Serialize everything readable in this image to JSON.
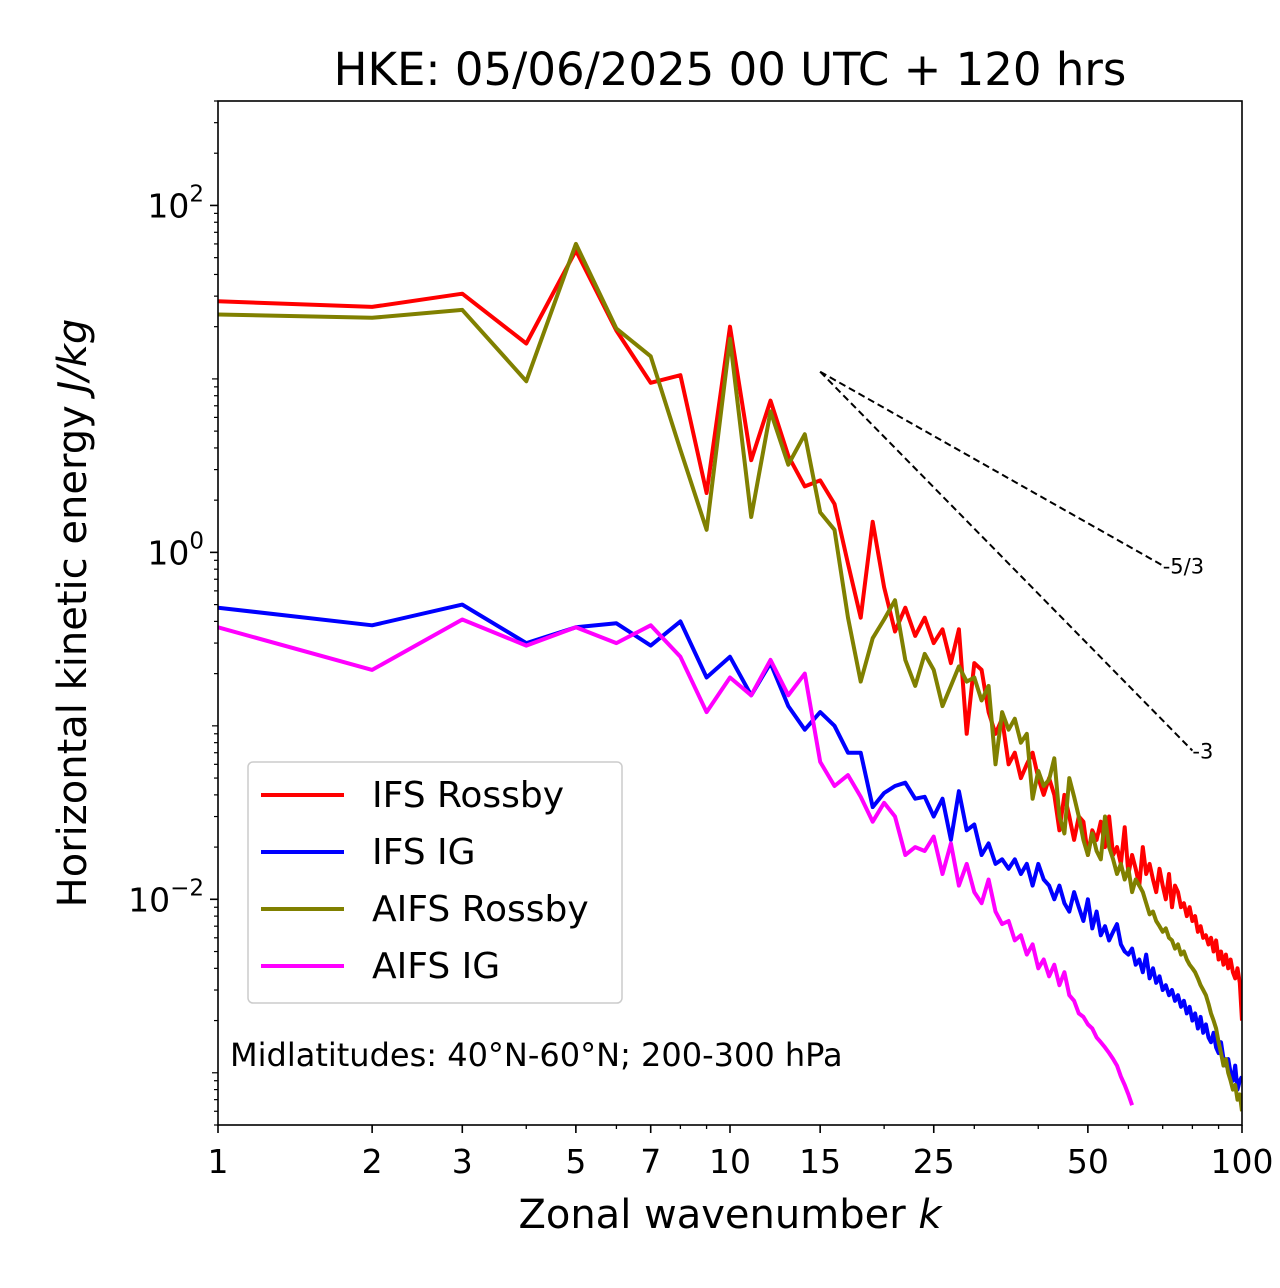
{
  "chart_data": {
    "type": "line",
    "title": "HKE: 05/06/2025 00 UTC + 120 hrs",
    "xlabel": "Zonal wavenumber",
    "xlabel_symbol": "k",
    "ylabel": "Horizontal kinetic energy",
    "ylabel_unit": "J/kg",
    "xscale": "log",
    "yscale": "log",
    "xlim": [
      1,
      100
    ],
    "ylim": [
      0.0005,
      400
    ],
    "xticks": [
      1,
      2,
      3,
      5,
      7,
      10,
      15,
      25,
      50,
      100
    ],
    "xtick_labels": [
      "1",
      "2",
      "3",
      "5",
      "7",
      "10",
      "15",
      "25",
      "50",
      "100"
    ],
    "yticks": [
      {
        "value": 100,
        "base": "10",
        "exp": "2"
      },
      {
        "value": 1,
        "base": "10",
        "exp": "0"
      },
      {
        "value": 0.01,
        "base": "10",
        "exp": "−2"
      }
    ],
    "annotation": "Midlatitudes: 40°N-60°N; 200-300 hPa",
    "legend_position": "lower-left",
    "reference_lines": [
      {
        "label": "-5/3",
        "slope": -1.6667,
        "x": [
          15,
          70
        ],
        "y": [
          11.0,
          0.84
        ]
      },
      {
        "label": "-3",
        "slope": -3,
        "x": [
          15,
          80
        ],
        "y": [
          11.0,
          0.072
        ]
      }
    ],
    "series": [
      {
        "name": "IFS Rossby",
        "color": "#ff0000",
        "x": [
          1,
          2,
          3,
          4,
          5,
          6,
          7,
          8,
          9,
          10,
          11,
          12,
          13,
          14,
          15,
          16,
          17,
          18,
          19,
          20,
          21,
          22,
          23,
          24,
          25,
          26,
          27,
          28,
          29,
          30,
          31,
          32,
          33,
          34,
          35,
          36,
          37,
          38,
          39,
          40,
          41,
          42,
          43,
          44,
          45,
          46,
          47,
          48,
          49,
          50,
          51,
          52,
          53,
          54,
          55,
          56,
          57,
          58,
          59,
          60,
          61,
          62,
          63,
          64,
          65,
          66,
          67,
          68,
          69,
          70,
          71,
          72,
          73,
          74,
          75,
          76,
          77,
          78,
          79,
          80,
          81,
          82,
          83,
          84,
          85,
          86,
          87,
          88,
          89,
          90,
          91,
          92,
          93,
          94,
          95,
          96,
          97,
          98,
          99,
          100
        ],
        "y": [
          28,
          26,
          31,
          16,
          55,
          19,
          9.5,
          10.5,
          2.2,
          20,
          3.4,
          7.5,
          3.6,
          2.4,
          2.6,
          1.9,
          0.86,
          0.42,
          1.5,
          0.63,
          0.35,
          0.48,
          0.33,
          0.42,
          0.3,
          0.36,
          0.23,
          0.36,
          0.09,
          0.23,
          0.21,
          0.12,
          0.09,
          0.11,
          0.06,
          0.07,
          0.05,
          0.06,
          0.07,
          0.05,
          0.04,
          0.05,
          0.04,
          0.025,
          0.04,
          0.03,
          0.022,
          0.03,
          0.028,
          0.018,
          0.025,
          0.022,
          0.028,
          0.02,
          0.03,
          0.018,
          0.02,
          0.016,
          0.026,
          0.014,
          0.018,
          0.015,
          0.012,
          0.02,
          0.014,
          0.016,
          0.013,
          0.011,
          0.015,
          0.012,
          0.01,
          0.014,
          0.009,
          0.012,
          0.011,
          0.009,
          0.0095,
          0.008,
          0.009,
          0.0075,
          0.008,
          0.0065,
          0.007,
          0.006,
          0.0062,
          0.0055,
          0.006,
          0.005,
          0.0058,
          0.0045,
          0.005,
          0.0042,
          0.0048,
          0.004,
          0.0045,
          0.0038,
          0.0035,
          0.004,
          0.0033,
          0.002
        ]
      },
      {
        "name": "IFS IG",
        "color": "#0000ff",
        "x": [
          1,
          2,
          3,
          4,
          5,
          6,
          7,
          8,
          9,
          10,
          11,
          12,
          13,
          14,
          15,
          16,
          17,
          18,
          19,
          20,
          21,
          22,
          23,
          24,
          25,
          26,
          27,
          28,
          29,
          30,
          31,
          32,
          33,
          34,
          35,
          36,
          37,
          38,
          39,
          40,
          41,
          42,
          43,
          44,
          45,
          46,
          47,
          48,
          49,
          50,
          51,
          52,
          53,
          54,
          55,
          56,
          57,
          58,
          59,
          60,
          61,
          62,
          63,
          64,
          65,
          66,
          67,
          68,
          69,
          70,
          71,
          72,
          73,
          74,
          75,
          76,
          77,
          78,
          79,
          80,
          81,
          82,
          83,
          84,
          85,
          86,
          87,
          88,
          89,
          90,
          91,
          92,
          93,
          94,
          95,
          96,
          97,
          98,
          99,
          100
        ],
        "y": [
          0.48,
          0.38,
          0.5,
          0.3,
          0.37,
          0.39,
          0.29,
          0.4,
          0.19,
          0.25,
          0.15,
          0.23,
          0.13,
          0.095,
          0.12,
          0.1,
          0.07,
          0.07,
          0.034,
          0.041,
          0.045,
          0.047,
          0.038,
          0.039,
          0.03,
          0.038,
          0.022,
          0.042,
          0.025,
          0.027,
          0.018,
          0.021,
          0.016,
          0.017,
          0.015,
          0.017,
          0.014,
          0.016,
          0.012,
          0.016,
          0.013,
          0.012,
          0.01,
          0.012,
          0.0095,
          0.0085,
          0.011,
          0.009,
          0.0075,
          0.01,
          0.0068,
          0.0085,
          0.0062,
          0.007,
          0.0058,
          0.0065,
          0.0072,
          0.0055,
          0.005,
          0.0048,
          0.0052,
          0.0042,
          0.0045,
          0.0038,
          0.0048,
          0.0035,
          0.004,
          0.0033,
          0.0036,
          0.003,
          0.0032,
          0.0028,
          0.003,
          0.0026,
          0.0028,
          0.0024,
          0.0026,
          0.0022,
          0.0024,
          0.002,
          0.0022,
          0.0018,
          0.0021,
          0.0017,
          0.0019,
          0.0016,
          0.0015,
          0.0017,
          0.0014,
          0.0013,
          0.0015,
          0.0012,
          0.0011,
          0.0012,
          0.001,
          0.0009,
          0.0011,
          0.0008,
          0.0009,
          0.00095
        ]
      },
      {
        "name": "AIFS Rossby",
        "color": "#808000",
        "x": [
          1,
          2,
          3,
          4,
          5,
          6,
          7,
          8,
          9,
          10,
          11,
          12,
          13,
          14,
          15,
          16,
          17,
          18,
          19,
          20,
          21,
          22,
          23,
          24,
          25,
          26,
          27,
          28,
          29,
          30,
          31,
          32,
          33,
          34,
          35,
          36,
          37,
          38,
          39,
          40,
          41,
          42,
          43,
          44,
          45,
          46,
          47,
          48,
          49,
          50,
          51,
          52,
          53,
          54,
          55,
          56,
          57,
          58,
          59,
          60,
          61,
          62,
          63,
          64,
          65,
          66,
          67,
          68,
          69,
          70,
          71,
          72,
          73,
          74,
          75,
          76,
          77,
          78,
          79,
          80,
          81,
          82,
          83,
          84,
          85,
          86,
          87,
          88,
          89,
          90,
          91,
          92,
          93,
          94,
          95,
          96,
          97,
          98,
          99,
          100
        ],
        "y": [
          23.5,
          22.5,
          25,
          9.7,
          60,
          19.5,
          13.5,
          3.9,
          1.35,
          17,
          1.6,
          6.5,
          3.2,
          4.8,
          1.7,
          1.35,
          0.42,
          0.18,
          0.32,
          0.41,
          0.53,
          0.24,
          0.17,
          0.26,
          0.21,
          0.13,
          0.17,
          0.22,
          0.18,
          0.19,
          0.14,
          0.17,
          0.06,
          0.12,
          0.095,
          0.11,
          0.08,
          0.09,
          0.038,
          0.055,
          0.045,
          0.049,
          0.065,
          0.03,
          0.024,
          0.05,
          0.039,
          0.03,
          0.022,
          0.018,
          0.024,
          0.019,
          0.017,
          0.03,
          0.02,
          0.017,
          0.014,
          0.016,
          0.013,
          0.015,
          0.011,
          0.013,
          0.012,
          0.011,
          0.0095,
          0.0082,
          0.0085,
          0.0075,
          0.007,
          0.0065,
          0.0068,
          0.006,
          0.0058,
          0.0052,
          0.0055,
          0.0048,
          0.005,
          0.0045,
          0.0042,
          0.004,
          0.0038,
          0.0035,
          0.0032,
          0.003,
          0.0028,
          0.0025,
          0.0022,
          0.002,
          0.0018,
          0.0015,
          0.0013,
          0.0011,
          0.0012,
          0.001,
          0.0009,
          0.0008,
          0.00085,
          0.0007,
          0.00075,
          0.0006
        ]
      },
      {
        "name": "AIFS IG",
        "color": "#ff00ff",
        "x": [
          1,
          2,
          3,
          4,
          5,
          6,
          7,
          8,
          9,
          10,
          11,
          12,
          13,
          14,
          15,
          16,
          17,
          18,
          19,
          20,
          21,
          22,
          23,
          24,
          25,
          26,
          27,
          28,
          29,
          30,
          31,
          32,
          33,
          34,
          35,
          36,
          37,
          38,
          39,
          40,
          41,
          42,
          43,
          44,
          45,
          46,
          47,
          48,
          49,
          50,
          51,
          52,
          53,
          54,
          55,
          56,
          57,
          58,
          59,
          60,
          61
        ],
        "y": [
          0.37,
          0.21,
          0.41,
          0.29,
          0.37,
          0.3,
          0.38,
          0.25,
          0.12,
          0.19,
          0.15,
          0.24,
          0.15,
          0.2,
          0.062,
          0.045,
          0.052,
          0.039,
          0.028,
          0.036,
          0.03,
          0.018,
          0.02,
          0.019,
          0.023,
          0.014,
          0.021,
          0.012,
          0.016,
          0.011,
          0.0095,
          0.013,
          0.0085,
          0.0072,
          0.0075,
          0.0058,
          0.0062,
          0.0048,
          0.0055,
          0.004,
          0.0045,
          0.0036,
          0.0042,
          0.0032,
          0.0038,
          0.0028,
          0.0026,
          0.0022,
          0.0021,
          0.0019,
          0.0018,
          0.0016,
          0.0015,
          0.0014,
          0.0013,
          0.0012,
          0.0011,
          0.00095,
          0.00085,
          0.00075,
          0.00065
        ]
      }
    ]
  }
}
